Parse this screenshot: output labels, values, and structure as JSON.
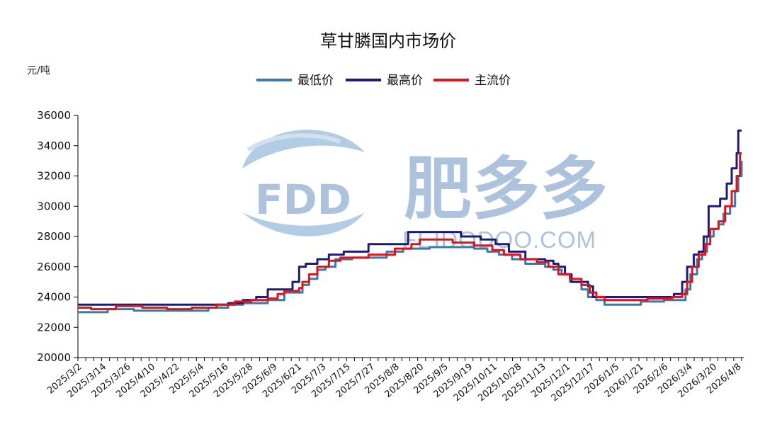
{
  "watermark": {
    "logo_text": "FDD",
    "cn_text": "肥多多",
    "en_text": "FEIDODOO.COM"
  },
  "colors": {
    "low": "#3d79a6",
    "high": "#1c1c78",
    "main": "#e0121b",
    "axis": "#000000"
  },
  "chart_data": {
    "type": "line",
    "title": "草甘膦国内市场价",
    "unit": "元/吨",
    "xlabel": "",
    "ylabel": "",
    "ylim": [
      20000,
      36000
    ],
    "yticks": [
      20000,
      22000,
      24000,
      26000,
      28000,
      30000,
      32000,
      34000,
      36000
    ],
    "xlim": [
      "2025/3/2",
      "2026/4/8"
    ],
    "xtick_labels": [
      "2025/3/2",
      "2025/3/14",
      "2025/3/26",
      "2025/4/10",
      "2025/4/22",
      "2025/5/4",
      "2025/5/16",
      "2025/5/28",
      "2025/6/9",
      "2025/6/21",
      "2025/7/3",
      "2025/7/15",
      "2025/7/27",
      "2025/8/8",
      "2025/8/20",
      "2025/9/5",
      "2025/9/19",
      "2025/10/11",
      "2025/10/28",
      "2025/11/13",
      "2025/12/1",
      "2025/12/17",
      "2026/1/5",
      "2026/1/21",
      "2026/2/6",
      "2026/3/4",
      "2026/3/20",
      "2026/4/8"
    ],
    "grid": false,
    "legend_position": "top-center",
    "series": [
      {
        "name": "最低价",
        "step": true,
        "points": [
          [
            "2025/3/2",
            23000
          ],
          [
            "2025/3/20",
            23200
          ],
          [
            "2025/4/5",
            23100
          ],
          [
            "2025/5/1",
            23100
          ],
          [
            "2025/5/20",
            23300
          ],
          [
            "2025/6/1",
            23500
          ],
          [
            "2025/6/10",
            23600
          ],
          [
            "2025/6/25",
            23800
          ],
          [
            "2025/7/5",
            24300
          ],
          [
            "2025/7/14",
            24300
          ],
          [
            "2025/7/16",
            24800
          ],
          [
            "2025/7/20",
            25200
          ],
          [
            "2025/7/25",
            25800
          ],
          [
            "2025/7/30",
            26000
          ],
          [
            "2025/8/5",
            26500
          ],
          [
            "2025/8/15",
            26600
          ],
          [
            "2025/9/1",
            26600
          ],
          [
            "2025/9/5",
            27000
          ],
          [
            "2025/9/15",
            27200
          ],
          [
            "2025/10/1",
            27300
          ],
          [
            "2025/10/15",
            27300
          ],
          [
            "2025/10/28",
            27200
          ],
          [
            "2025/11/5",
            27000
          ],
          [
            "2025/11/12",
            26800
          ],
          [
            "2025/11/20",
            26500
          ],
          [
            "2025/11/28",
            26200
          ],
          [
            "2025/12/10",
            26000
          ],
          [
            "2025/12/15",
            25800
          ],
          [
            "2025/12/20",
            25500
          ],
          [
            "2025/12/25",
            25000
          ],
          [
            "2026/1/1",
            24500
          ],
          [
            "2026/1/5",
            24000
          ],
          [
            "2026/1/10",
            23800
          ],
          [
            "2026/1/15",
            23500
          ],
          [
            "2026/2/6",
            23700
          ],
          [
            "2026/2/20",
            23800
          ],
          [
            "2026/3/1",
            23800
          ],
          [
            "2026/3/5",
            24500
          ],
          [
            "2026/3/8",
            25500
          ],
          [
            "2026/3/12",
            26500
          ],
          [
            "2026/3/15",
            27000
          ],
          [
            "2026/3/18",
            28000
          ],
          [
            "2026/3/22",
            28500
          ],
          [
            "2026/3/25",
            28800
          ],
          [
            "2026/3/28",
            29500
          ],
          [
            "2026/4/1",
            30000
          ],
          [
            "2026/4/4",
            31000
          ],
          [
            "2026/4/6",
            32000
          ],
          [
            "2026/4/8",
            33000
          ]
        ]
      },
      {
        "name": "最高价",
        "step": true,
        "points": [
          [
            "2025/3/2",
            23500
          ],
          [
            "2025/6/1",
            23600
          ],
          [
            "2025/6/10",
            23800
          ],
          [
            "2025/6/18",
            24000
          ],
          [
            "2025/6/25",
            24500
          ],
          [
            "2025/7/10",
            25000
          ],
          [
            "2025/7/14",
            26000
          ],
          [
            "2025/7/18",
            26200
          ],
          [
            "2025/7/25",
            26500
          ],
          [
            "2025/8/1",
            26800
          ],
          [
            "2025/8/10",
            27000
          ],
          [
            "2025/8/25",
            27500
          ],
          [
            "2025/9/18",
            28300
          ],
          [
            "2025/10/15",
            28300
          ],
          [
            "2025/10/20",
            28000
          ],
          [
            "2025/11/1",
            27800
          ],
          [
            "2025/11/10",
            27500
          ],
          [
            "2025/11/18",
            27000
          ],
          [
            "2025/11/28",
            26500
          ],
          [
            "2025/12/10",
            26400
          ],
          [
            "2025/12/15",
            26200
          ],
          [
            "2025/12/18",
            26000
          ],
          [
            "2025/12/22",
            25500
          ],
          [
            "2025/12/26",
            25000
          ],
          [
            "2026/1/5",
            24700
          ],
          [
            "2026/1/8",
            24000
          ],
          [
            "2026/2/26",
            24200
          ],
          [
            "2026/3/3",
            25000
          ],
          [
            "2026/3/6",
            26000
          ],
          [
            "2026/3/10",
            26800
          ],
          [
            "2026/3/13",
            27000
          ],
          [
            "2026/3/16",
            28000
          ],
          [
            "2026/3/19",
            30000
          ],
          [
            "2026/3/26",
            30500
          ],
          [
            "2026/3/30",
            31500
          ],
          [
            "2026/4/2",
            32500
          ],
          [
            "2026/4/5",
            33500
          ],
          [
            "2026/4/6",
            35000
          ],
          [
            "2026/4/8",
            35000
          ]
        ]
      },
      {
        "name": "主流价",
        "step": true,
        "points": [
          [
            "2025/3/2",
            23300
          ],
          [
            "2025/3/10",
            23200
          ],
          [
            "2025/3/25",
            23400
          ],
          [
            "2025/4/10",
            23300
          ],
          [
            "2025/4/25",
            23200
          ],
          [
            "2025/5/10",
            23300
          ],
          [
            "2025/5/25",
            23500
          ],
          [
            "2025/6/5",
            23700
          ],
          [
            "2025/6/15",
            23800
          ],
          [
            "2025/6/25",
            23900
          ],
          [
            "2025/7/1",
            24200
          ],
          [
            "2025/7/5",
            24400
          ],
          [
            "2025/7/14",
            24600
          ],
          [
            "2025/7/16",
            25000
          ],
          [
            "2025/7/20",
            25500
          ],
          [
            "2025/7/25",
            26000
          ],
          [
            "2025/8/1",
            26400
          ],
          [
            "2025/8/8",
            26600
          ],
          [
            "2025/8/25",
            26800
          ],
          [
            "2025/9/10",
            27200
          ],
          [
            "2025/9/20",
            27500
          ],
          [
            "2025/9/25",
            27800
          ],
          [
            "2025/10/15",
            27600
          ],
          [
            "2025/10/28",
            27400
          ],
          [
            "2025/11/8",
            27100
          ],
          [
            "2025/11/15",
            26800
          ],
          [
            "2025/11/25",
            26500
          ],
          [
            "2025/12/5",
            26300
          ],
          [
            "2025/12/12",
            26000
          ],
          [
            "2025/12/18",
            25500
          ],
          [
            "2025/12/25",
            25200
          ],
          [
            "2026/1/1",
            24800
          ],
          [
            "2026/1/6",
            24300
          ],
          [
            "2026/1/10",
            24000
          ],
          [
            "2026/1/15",
            23800
          ],
          [
            "2026/2/10",
            23900
          ],
          [
            "2026/2/25",
            24000
          ],
          [
            "2026/3/3",
            24200
          ],
          [
            "2026/3/6",
            25000
          ],
          [
            "2026/3/9",
            26000
          ],
          [
            "2026/3/13",
            26800
          ],
          [
            "2026/3/17",
            27500
          ],
          [
            "2026/3/20",
            28500
          ],
          [
            "2026/3/25",
            29000
          ],
          [
            "2026/3/29",
            30000
          ],
          [
            "2026/4/2",
            31000
          ],
          [
            "2026/4/5",
            32000
          ],
          [
            "2026/4/7",
            33500
          ],
          [
            "2026/4/8",
            33500
          ]
        ]
      }
    ]
  }
}
